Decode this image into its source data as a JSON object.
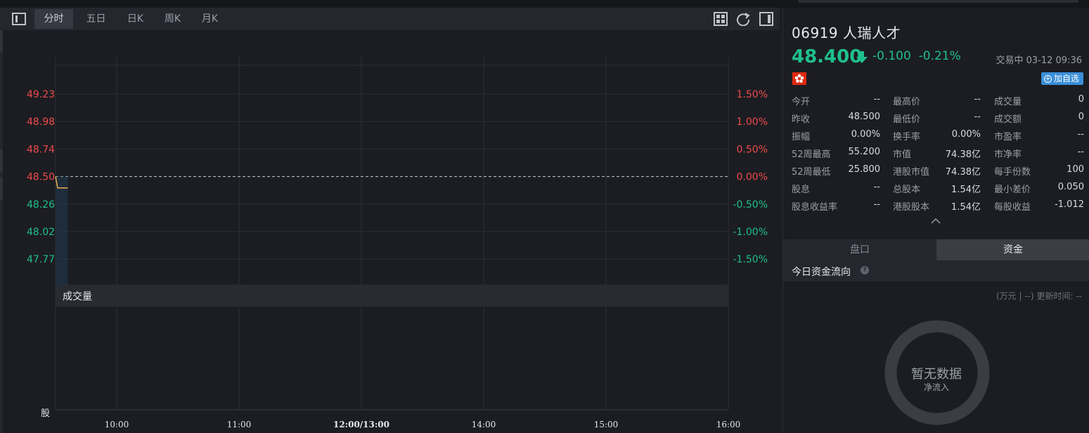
{
  "toolbar": {
    "tabs": [
      "分时",
      "五日",
      "日K",
      "周K",
      "月K"
    ],
    "active_tab": "分时"
  },
  "chart_data": {
    "type": "line",
    "title": "",
    "prev_close": 48.5,
    "price_ticks": [
      "49.23",
      "48.98",
      "48.74",
      "48.50",
      "48.26",
      "48.02",
      "47.77"
    ],
    "pct_ticks": [
      "1.50%",
      "1.00%",
      "0.50%",
      "0.00%",
      "-0.50%",
      "-1.00%",
      "-1.50%"
    ],
    "x_ticks": [
      "10:00",
      "11:00",
      "12:00/13:00",
      "14:00",
      "15:00",
      "16:00"
    ],
    "series": [
      {
        "x": [
          "09:30",
          "09:31",
          "09:36"
        ],
        "values": [
          48.5,
          48.4,
          48.4
        ]
      }
    ],
    "ylim": [
      47.77,
      49.23
    ],
    "grid": true,
    "colors": {
      "up": "#ef4a4a",
      "down": "#1fc08a",
      "line": "#e8b04b",
      "baseline": "#c8ccd2"
    }
  },
  "volume_panel": {
    "label": "成交量",
    "side_label": "股"
  },
  "quote": {
    "code": "06919",
    "name": "人瑞人才",
    "price": "48.400",
    "change": "-0.100",
    "change_pct": "-0.21%",
    "status": "交易中 03-12 09:36",
    "watch_label": "加自选"
  },
  "stats": [
    [
      [
        "今开",
        "--"
      ],
      [
        "最高价",
        "--"
      ],
      [
        "成交量",
        "0"
      ]
    ],
    [
      [
        "昨收",
        "48.500"
      ],
      [
        "最低价",
        "--"
      ],
      [
        "成交额",
        "0"
      ]
    ],
    [
      [
        "振幅",
        "0.00%"
      ],
      [
        "换手率",
        "0.00%"
      ],
      [
        "市盈率",
        "--"
      ]
    ],
    [
      [
        "52周最高",
        "55.200"
      ],
      [
        "市值",
        "74.38亿"
      ],
      [
        "市净率",
        "--"
      ]
    ],
    [
      [
        "52周最低",
        "25.800"
      ],
      [
        "港股市值",
        "74.38亿"
      ],
      [
        "每手份数",
        "100"
      ]
    ],
    [
      [
        "股息",
        "--"
      ],
      [
        "总股本",
        "1.54亿"
      ],
      [
        "最小差价",
        "0.050"
      ]
    ],
    [
      [
        "股息收益率",
        "--"
      ],
      [
        "港股股本",
        "1.54亿"
      ],
      [
        "每股收益",
        "-1.012"
      ]
    ]
  ],
  "subtabs": [
    "盘口",
    "资金"
  ],
  "capital": {
    "title": "今日资金流向",
    "unit_note": "(万元 | --) 更新时间: --",
    "empty_main": "暂无数据",
    "empty_sub": "净流入"
  }
}
